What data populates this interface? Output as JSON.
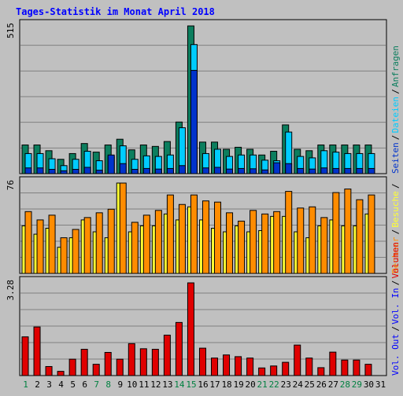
{
  "chart_data": {
    "title": "Tages-Statistik im Monat April 2018",
    "categories": [
      "1",
      "2",
      "3",
      "4",
      "5",
      "6",
      "7",
      "8",
      "9",
      "10",
      "11",
      "12",
      "13",
      "14",
      "15",
      "16",
      "17",
      "18",
      "19",
      "20",
      "21",
      "22",
      "23",
      "24",
      "25",
      "26",
      "27",
      "28",
      "29",
      "30",
      "31"
    ],
    "weekend_days": [
      "1",
      "7",
      "8",
      "14",
      "15",
      "21",
      "22",
      "28",
      "29"
    ],
    "colors": {
      "background": "#c0c0c0",
      "title": "#0000ff",
      "anfragen": "#0c7e5e",
      "dateien": "#00ccff",
      "seiten": "#0033cc",
      "besuche": "#ffff33",
      "rechner": "#ff8c00",
      "volumen": "#e00000",
      "axis_weekday": "#000000",
      "axis_weekend": "#008040",
      "label_out_in": "#0000ff"
    },
    "panels": [
      {
        "type": "bar",
        "ymax_label": "515",
        "ylim": [
          0,
          515
        ],
        "series": [
          {
            "name": "Anfragen",
            "color_key": "anfragen",
            "values": [
              100,
              100,
              80,
              50,
              70,
              105,
              75,
              100,
              120,
              83,
              100,
              95,
              112,
              180,
              515,
              110,
              110,
              85,
              92,
              85,
              65,
              78,
              170,
              85,
              80,
              100,
              100,
              100,
              100,
              100,
              0
            ]
          },
          {
            "name": "Dateien",
            "color_key": "dateien",
            "values": [
              70,
              70,
              52,
              28,
              50,
              78,
              45,
              60,
              97,
              50,
              62,
              60,
              65,
              160,
              450,
              70,
              85,
              60,
              65,
              65,
              47,
              45,
              145,
              60,
              55,
              80,
              75,
              70,
              70,
              70,
              0
            ]
          },
          {
            "name": "Seiten",
            "color_key": "seiten",
            "values": [
              20,
              20,
              15,
              10,
              15,
              22,
              12,
              65,
              35,
              15,
              18,
              16,
              18,
              28,
              360,
              20,
              22,
              16,
              18,
              17,
              13,
              38,
              35,
              18,
              16,
              20,
              18,
              18,
              18,
              18,
              0
            ]
          }
        ],
        "legend_labels": [
          "Seiten",
          "/",
          "Dateien",
          "/",
          "Anfragen"
        ]
      },
      {
        "type": "bar",
        "ymax_label": "76",
        "ylim": [
          0,
          76
        ],
        "series": [
          {
            "name": "Besuche",
            "color_key": "besuche",
            "values": [
              40,
              33,
              38,
              22,
              30,
              45,
              35,
              30,
              76,
              35,
              40,
              40,
              50,
              45,
              56,
              45,
              38,
              35,
              40,
              35,
              36,
              48,
              48,
              35,
              30,
              40,
              45,
              40,
              40,
              50,
              0
            ]
          },
          {
            "name": "Rechner",
            "color_key": "rechner",
            "values": [
              52,
              45,
              49,
              30,
              37,
              47,
              51,
              54,
              76,
              43,
              49,
              53,
              66,
              58,
              66,
              61,
              60,
              51,
              44,
              53,
              50,
              52,
              69,
              55,
              56,
              47,
              68,
              71,
              62,
              66,
              0
            ]
          }
        ],
        "legend_labels": [
          "Rechner",
          "/",
          "Besuche",
          "/"
        ]
      },
      {
        "type": "bar",
        "ymax_label": "3.28",
        "ylim": [
          0,
          3.28
        ],
        "series": [
          {
            "name": "Volumen",
            "color_key": "volumen",
            "values": [
              1.37,
              1.72,
              0.32,
              0.15,
              0.58,
              0.93,
              0.4,
              0.82,
              0.58,
              1.13,
              0.95,
              0.93,
              1.43,
              1.88,
              3.28,
              0.97,
              0.62,
              0.73,
              0.67,
              0.62,
              0.27,
              0.34,
              0.47,
              1.08,
              0.62,
              0.28,
              0.83,
              0.55,
              0.55,
              0.4,
              0
            ]
          }
        ],
        "legend_labels": [
          "Vol. Out",
          "/",
          "Vol. In",
          "/",
          "Volumen"
        ]
      }
    ]
  }
}
